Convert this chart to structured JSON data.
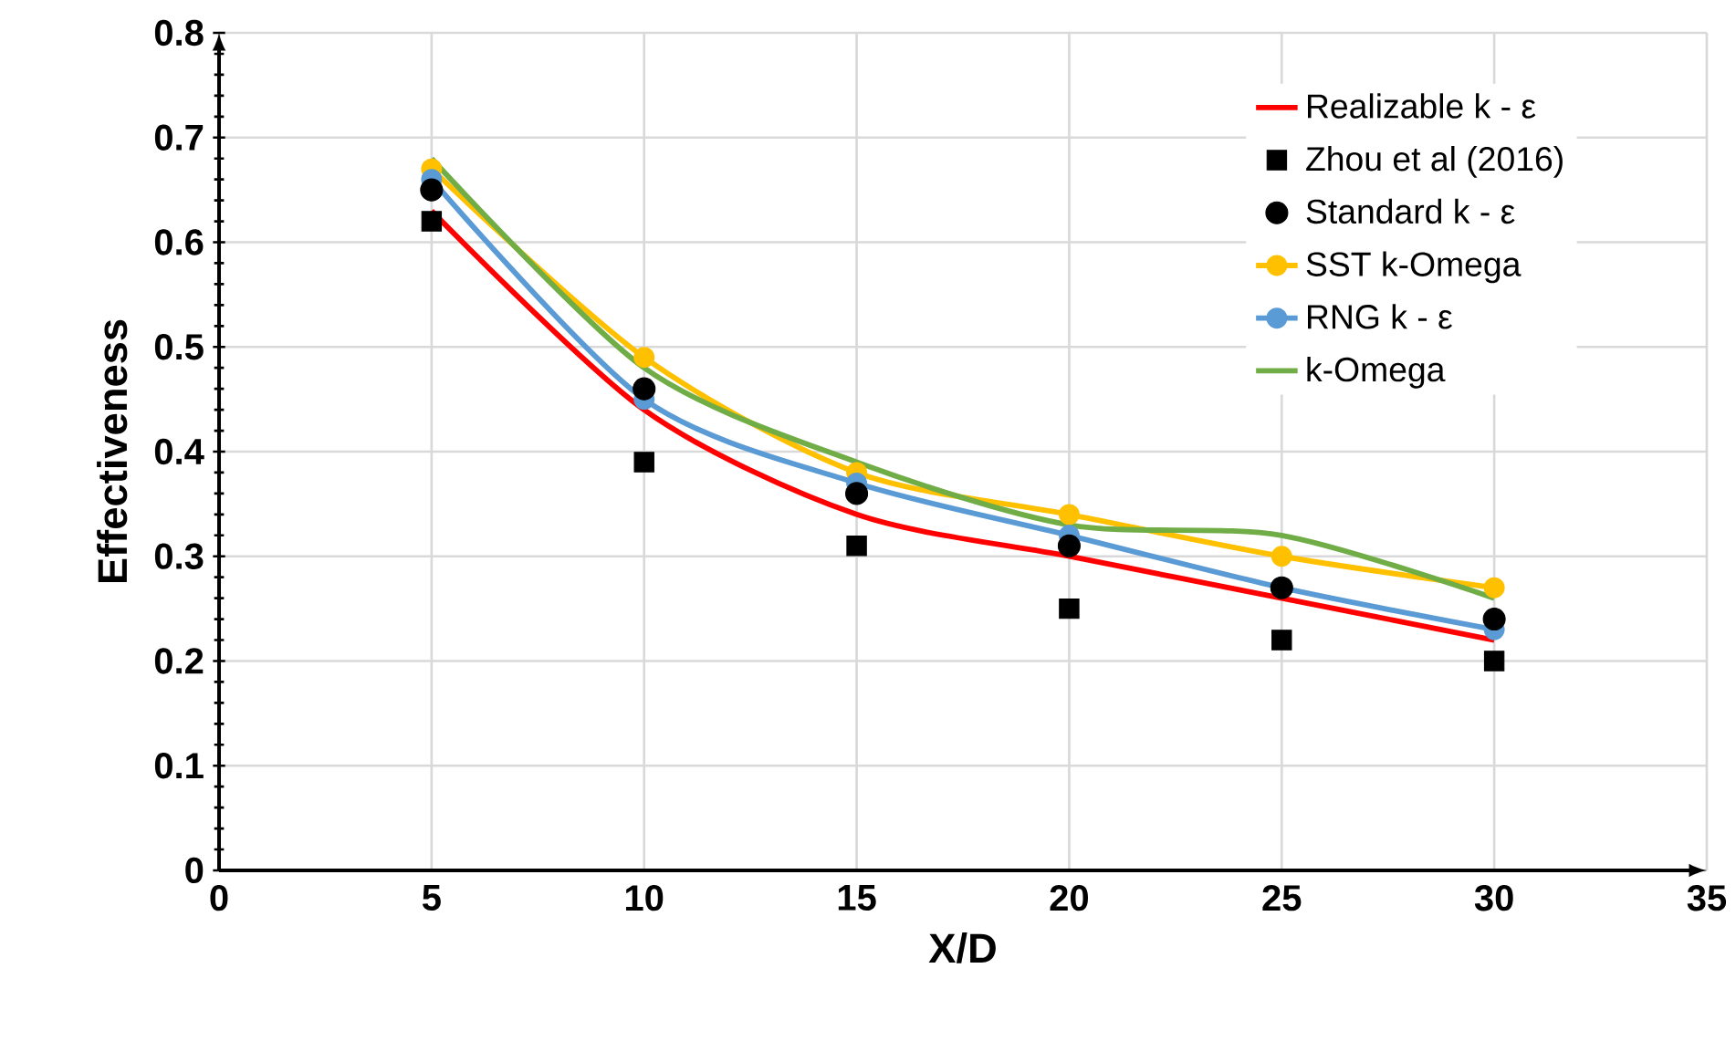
{
  "chart_data": {
    "type": "line",
    "xlabel": "X/D",
    "ylabel": "Effectiveness",
    "x": [
      5,
      10,
      15,
      20,
      25,
      30
    ],
    "series": [
      {
        "name": "Realizable k - ε",
        "color": "#ff0000",
        "marker": "none",
        "line_style": "solid",
        "values": [
          0.63,
          0.44,
          0.34,
          0.3,
          0.26,
          0.22
        ]
      },
      {
        "name": "Zhou et al (2016)",
        "color": "#000000",
        "type": "scatter",
        "marker": "square",
        "values": [
          0.62,
          0.39,
          0.31,
          0.25,
          0.22,
          0.2
        ]
      },
      {
        "name": "Standard k - ε",
        "color": "#000000",
        "type": "scatter",
        "marker": "circle",
        "values": [
          0.65,
          0.46,
          0.36,
          0.31,
          0.27,
          0.24
        ]
      },
      {
        "name": "SST k-Omega",
        "color": "#ffc000",
        "marker": "circle",
        "line_style": "solid",
        "values": [
          0.67,
          0.49,
          0.38,
          0.34,
          0.3,
          0.27
        ]
      },
      {
        "name": "RNG k - ε",
        "color": "#5b9bd5",
        "marker": "circle",
        "line_style": "solid",
        "values": [
          0.66,
          0.45,
          0.37,
          0.32,
          0.27,
          0.23
        ]
      },
      {
        "name": "k-Omega",
        "color": "#70ad47",
        "marker": "none",
        "line_style": "solid",
        "values": [
          0.68,
          0.48,
          0.39,
          0.33,
          0.32,
          0.26
        ]
      }
    ],
    "xlim": [
      0,
      35
    ],
    "xticks": [
      0,
      5,
      10,
      15,
      20,
      25,
      30,
      35
    ],
    "ylim": [
      0,
      0.8
    ],
    "yticks": [
      0,
      0.1,
      0.2,
      0.3,
      0.4,
      0.5,
      0.6,
      0.7,
      0.8
    ],
    "grid": true,
    "legend": "top right"
  }
}
